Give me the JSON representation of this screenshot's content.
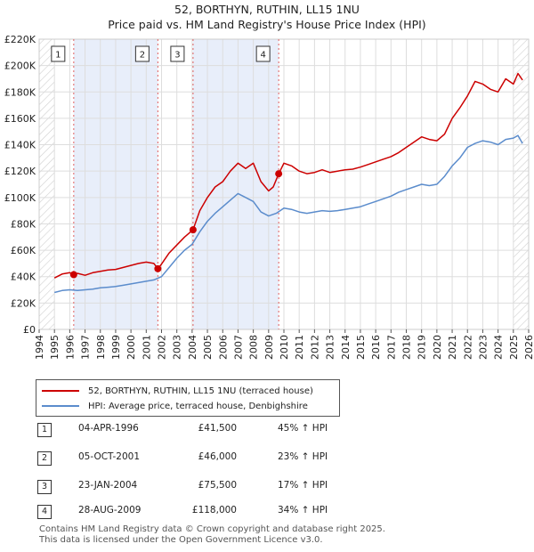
{
  "title": "52, BORTHYN, RUTHIN, LL15 1NU",
  "subtitle": "Price paid vs. HM Land Registry's House Price Index (HPI)",
  "colors": {
    "price_paid": "#cc0000",
    "hpi": "#5b8ccc",
    "shade": "#e8eefa",
    "vline": "#e06060"
  },
  "chart_data": {
    "type": "line",
    "xlim": [
      1994,
      2026
    ],
    "ylim": [
      0,
      220000
    ],
    "yticks": [
      0,
      20000,
      40000,
      60000,
      80000,
      100000,
      120000,
      140000,
      160000,
      180000,
      200000,
      220000
    ],
    "ytick_labels": [
      "£0",
      "£20K",
      "£40K",
      "£60K",
      "£80K",
      "£100K",
      "£120K",
      "£140K",
      "£160K",
      "£180K",
      "£200K",
      "£220K"
    ],
    "xticks": [
      1994,
      1995,
      1996,
      1997,
      1998,
      1999,
      2000,
      2001,
      2002,
      2003,
      2004,
      2005,
      2006,
      2007,
      2008,
      2009,
      2010,
      2011,
      2012,
      2013,
      2014,
      2015,
      2016,
      2017,
      2018,
      2019,
      2020,
      2021,
      2022,
      2023,
      2024,
      2025,
      2026
    ],
    "grid": true,
    "series": [
      {
        "name": "52, BORTHYN, RUTHIN, LL15 1NU (terraced house)",
        "color": "#cc0000",
        "x": [
          1995.0,
          1995.5,
          1996.0,
          1996.26,
          1996.5,
          1997.0,
          1997.5,
          1998.0,
          1998.5,
          1999.0,
          1999.5,
          2000.0,
          2000.5,
          2001.0,
          2001.5,
          2001.76,
          2002.0,
          2002.5,
          2003.0,
          2003.5,
          2004.06,
          2004.5,
          2005.0,
          2005.5,
          2006.0,
          2006.5,
          2007.0,
          2007.5,
          2008.0,
          2008.5,
          2009.0,
          2009.3,
          2009.66,
          2010.0,
          2010.5,
          2011.0,
          2011.5,
          2012.0,
          2012.5,
          2013.0,
          2013.5,
          2014.0,
          2014.5,
          2015.0,
          2015.5,
          2016.0,
          2016.5,
          2017.0,
          2017.5,
          2018.0,
          2018.5,
          2019.0,
          2019.5,
          2020.0,
          2020.5,
          2021.0,
          2021.5,
          2022.0,
          2022.5,
          2023.0,
          2023.5,
          2024.0,
          2024.5,
          2025.0,
          2025.3,
          2025.6
        ],
        "values": [
          39000,
          42000,
          43000,
          41500,
          42500,
          41000,
          43000,
          44000,
          45000,
          45500,
          47000,
          48500,
          50000,
          51000,
          50000,
          46000,
          49500,
          58000,
          64000,
          70000,
          75500,
          90000,
          100000,
          108000,
          112000,
          120000,
          126000,
          122000,
          126000,
          112000,
          105000,
          108000,
          118000,
          126000,
          124000,
          120000,
          118000,
          119000,
          121000,
          119000,
          120000,
          121000,
          121500,
          123000,
          125000,
          127000,
          129000,
          131000,
          134000,
          138000,
          142000,
          146000,
          144000,
          143000,
          148000,
          160000,
          168000,
          177000,
          188000,
          186000,
          182000,
          180000,
          190000,
          186000,
          194000,
          189000
        ]
      },
      {
        "name": "HPI: Average price, terraced house, Denbighshire",
        "color": "#5b8ccc",
        "x": [
          1995.0,
          1995.5,
          1996.0,
          1996.5,
          1997.0,
          1997.5,
          1998.0,
          1998.5,
          1999.0,
          1999.5,
          2000.0,
          2000.5,
          2001.0,
          2001.5,
          2002.0,
          2002.5,
          2003.0,
          2003.5,
          2004.0,
          2004.5,
          2005.0,
          2005.5,
          2006.0,
          2006.5,
          2007.0,
          2007.5,
          2008.0,
          2008.5,
          2009.0,
          2009.5,
          2010.0,
          2010.5,
          2011.0,
          2011.5,
          2012.0,
          2012.5,
          2013.0,
          2013.5,
          2014.0,
          2014.5,
          2015.0,
          2015.5,
          2016.0,
          2016.5,
          2017.0,
          2017.5,
          2018.0,
          2018.5,
          2019.0,
          2019.5,
          2020.0,
          2020.5,
          2021.0,
          2021.5,
          2022.0,
          2022.5,
          2023.0,
          2023.5,
          2024.0,
          2024.5,
          2025.0,
          2025.3,
          2025.6
        ],
        "values": [
          28000,
          29500,
          30000,
          29500,
          30000,
          30500,
          31500,
          32000,
          32500,
          33500,
          34500,
          35500,
          36500,
          37500,
          40000,
          47000,
          54000,
          60000,
          64500,
          74000,
          82000,
          88000,
          93000,
          98000,
          103000,
          100000,
          97000,
          89000,
          86000,
          88000,
          92000,
          91000,
          89000,
          88000,
          89000,
          90000,
          89500,
          90000,
          91000,
          92000,
          93000,
          95000,
          97000,
          99000,
          101000,
          104000,
          106000,
          108000,
          110000,
          109000,
          110000,
          116000,
          124000,
          130000,
          138000,
          141000,
          143000,
          142000,
          140000,
          144000,
          145000,
          147000,
          141000
        ]
      }
    ],
    "sales": [
      {
        "label": "1",
        "x": 1996.26,
        "value": 41500
      },
      {
        "label": "2",
        "x": 2001.76,
        "value": 46000
      },
      {
        "label": "3",
        "x": 2004.06,
        "value": 75500
      },
      {
        "label": "4",
        "x": 2009.66,
        "value": 118000
      }
    ],
    "shaded_spans": [
      [
        1996.26,
        2001.76
      ],
      [
        2004.06,
        2009.66
      ]
    ],
    "hatched_before": 1995.0,
    "hatched_after": 2025.0
  },
  "legend": {
    "items": [
      {
        "label": "52, BORTHYN, RUTHIN, LL15 1NU (terraced house)",
        "color": "#cc0000"
      },
      {
        "label": "HPI: Average price, terraced house, Denbighshire",
        "color": "#5b8ccc"
      }
    ]
  },
  "transactions": [
    {
      "num": "1",
      "date": "04-APR-1996",
      "price": "£41,500",
      "hpi": "45% ↑ HPI"
    },
    {
      "num": "2",
      "date": "05-OCT-2001",
      "price": "£46,000",
      "hpi": "23% ↑ HPI"
    },
    {
      "num": "3",
      "date": "23-JAN-2004",
      "price": "£75,500",
      "hpi": "17% ↑ HPI"
    },
    {
      "num": "4",
      "date": "28-AUG-2009",
      "price": "£118,000",
      "hpi": "34% ↑ HPI"
    }
  ],
  "footer": {
    "line1": "Contains HM Land Registry data © Crown copyright and database right 2025.",
    "line2": "This data is licensed under the Open Government Licence v3.0."
  }
}
